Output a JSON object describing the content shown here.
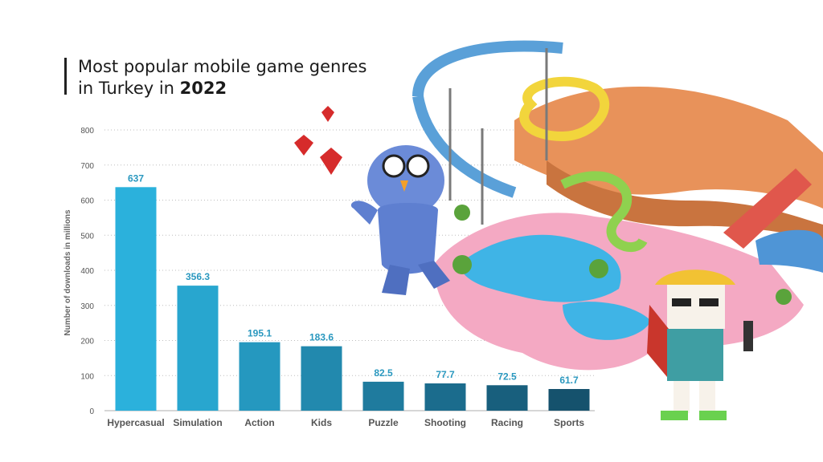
{
  "title": {
    "line1": "Most popular mobile game genres",
    "line2_prefix": "in Turkey in ",
    "line2_year": "2022"
  },
  "colors": {
    "bars": [
      "#2bb1dc",
      "#28a6cf",
      "#2598bf",
      "#2289ae",
      "#1f7b9e",
      "#1b6c8d",
      "#185f7d",
      "#15526d"
    ],
    "label": "#2a98bf",
    "grid": "#bdbdbd",
    "axis_text": "#555555"
  },
  "chart_data": {
    "type": "bar",
    "categories": [
      "Hypercasual",
      "Simulation",
      "Action",
      "Kids",
      "Puzzle",
      "Shooting",
      "Racing",
      "Sports"
    ],
    "values": [
      637,
      356.3,
      195.1,
      183.6,
      82.5,
      77.7,
      72.5,
      61.7
    ],
    "value_labels": [
      "637",
      "356.3",
      "195.1",
      "183.6",
      "82.5",
      "77.7",
      "72.5",
      "61.7"
    ],
    "title": "Most popular mobile game genres in Turkey in 2022",
    "xlabel": "",
    "ylabel": "Number of downloads in millions",
    "ylim": [
      0,
      800
    ],
    "yticks": [
      0,
      100,
      200,
      300,
      400,
      500,
      600,
      700,
      800
    ],
    "grid": true,
    "legend": "none"
  },
  "illustration": {
    "icons": [
      "hearts-icon",
      "penguin-character-icon",
      "waterpark-icon",
      "cat-character-icon"
    ]
  }
}
